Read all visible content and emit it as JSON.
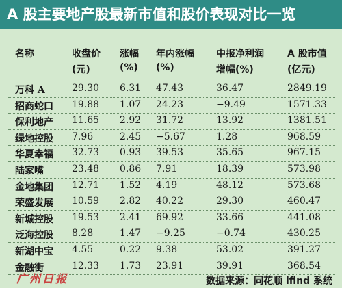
{
  "header": {
    "title": "A 股主要地产股最新市值和股价表现对比一览"
  },
  "table": {
    "columns": [
      [
        "名称"
      ],
      [
        "收盘价",
        "(元)"
      ],
      [
        "涨幅",
        "(%)"
      ],
      [
        "年内涨幅",
        "(%)"
      ],
      [
        "中报净利润",
        "增幅(%)"
      ],
      [
        "A 股市值",
        "(亿元)"
      ]
    ],
    "rows": [
      [
        "万科 A",
        "29.30",
        "6.31",
        "47.43",
        "36.47",
        "2849.19"
      ],
      [
        "招商蛇口",
        "19.88",
        "1.07",
        "24.23",
        "−9.49",
        "1571.33"
      ],
      [
        "保利地产",
        "11.65",
        "2.92",
        "31.72",
        "13.92",
        "1381.51"
      ],
      [
        "绿地控股",
        "7.96",
        "2.45",
        "−5.67",
        "1.28",
        "968.59"
      ],
      [
        "华夏幸福",
        "32.73",
        "0.93",
        "39.53",
        "35.65",
        "967.15"
      ],
      [
        "陆家嘴",
        "23.48",
        "0.86",
        "7.91",
        "18.39",
        "573.98"
      ],
      [
        "金地集团",
        "12.71",
        "1.52",
        "4.19",
        "48.12",
        "573.68"
      ],
      [
        "荣盛发展",
        "10.59",
        "2.82",
        "40.22",
        "29.30",
        "460.47"
      ],
      [
        "新城控股",
        "19.53",
        "2.41",
        "69.92",
        "33.66",
        "441.08"
      ],
      [
        "泛海控股",
        "8.28",
        "1.47",
        "−9.25",
        "−0.74",
        "430.25"
      ],
      [
        "新湖中宝",
        "4.55",
        "0.22",
        "9.38",
        "53.02",
        "391.27"
      ],
      [
        "金融街",
        "12.33",
        "1.73",
        "23.91",
        "39.91",
        "368.54"
      ]
    ]
  },
  "footer": {
    "source": "数据来源：同花顺 ifind 系统",
    "watermark": "广州日报"
  }
}
